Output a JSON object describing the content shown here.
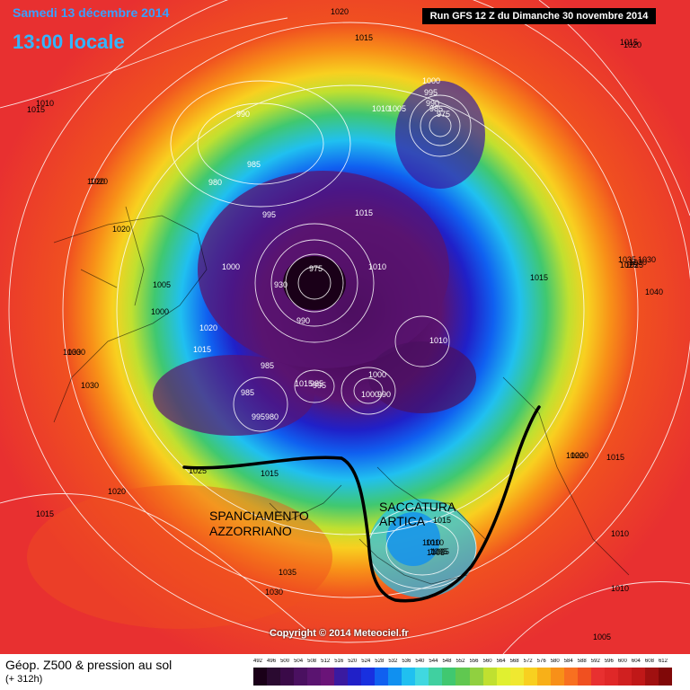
{
  "header": {
    "date": "Samedi 13 décembre 2014",
    "local_time": "13:00 locale",
    "run": "Run GFS 12 Z du Dimanche 30 novembre 2014"
  },
  "footer": {
    "title": "Géop. Z500 & pression au sol",
    "forecast_hour": "(+ 312h)",
    "copyright": "Copyright © 2014 Meteociel.fr",
    "scale_values": [
      "492",
      "496",
      "500",
      "504",
      "508",
      "512",
      "516",
      "520",
      "524",
      "528",
      "532",
      "536",
      "540",
      "544",
      "548",
      "552",
      "556",
      "560",
      "564",
      "568",
      "572",
      "576",
      "580",
      "584",
      "588",
      "592",
      "596",
      "600",
      "604",
      "608",
      "612"
    ],
    "scale_colors": [
      "#1a0018",
      "#2a0a30",
      "#3a0a48",
      "#4a1060",
      "#5a1470",
      "#6a1478",
      "#3a1aa0",
      "#2020c8",
      "#1830e0",
      "#1060f0",
      "#1090f0",
      "#20c0f0",
      "#40d8e0",
      "#40d0a0",
      "#40c870",
      "#60c850",
      "#90d040",
      "#c0e030",
      "#e0f030",
      "#f0e830",
      "#f8d020",
      "#f8b018",
      "#f89018",
      "#f87020",
      "#f05020",
      "#e83030",
      "#e02828",
      "#d02020",
      "#c01818",
      "#a01010",
      "#800808"
    ]
  },
  "annotations": {
    "azores": [
      "SPANCIAMENTO",
      "AZZORRIANO"
    ],
    "arctic": [
      "SACCATURA",
      "ARTICA"
    ]
  },
  "pressure_labels": [
    "1020",
    "1015",
    "1010",
    "1020",
    "1020",
    "1015",
    "1020",
    "1015",
    "1030",
    "1030",
    "1035",
    "1030",
    "1025",
    "1015",
    "1020",
    "1030",
    "1020",
    "1015",
    "1010",
    "1010",
    "1005",
    "1005",
    "1010",
    "1005",
    "1035",
    "1030",
    "1020",
    "1015",
    "1000",
    "995",
    "990",
    "985",
    "975",
    "1010",
    "1005",
    "1020",
    "990",
    "985",
    "980",
    "995",
    "1015",
    "1000",
    "1005",
    "1000",
    "1020",
    "1015",
    "1030",
    "985",
    "975",
    "930",
    "1010",
    "990",
    "1000",
    "985",
    "995",
    "980",
    "985",
    "1015",
    "1010",
    "1000",
    "990",
    "995",
    "1015",
    "1040",
    "1025",
    "1025",
    "1015",
    "1010",
    "1005"
  ]
}
